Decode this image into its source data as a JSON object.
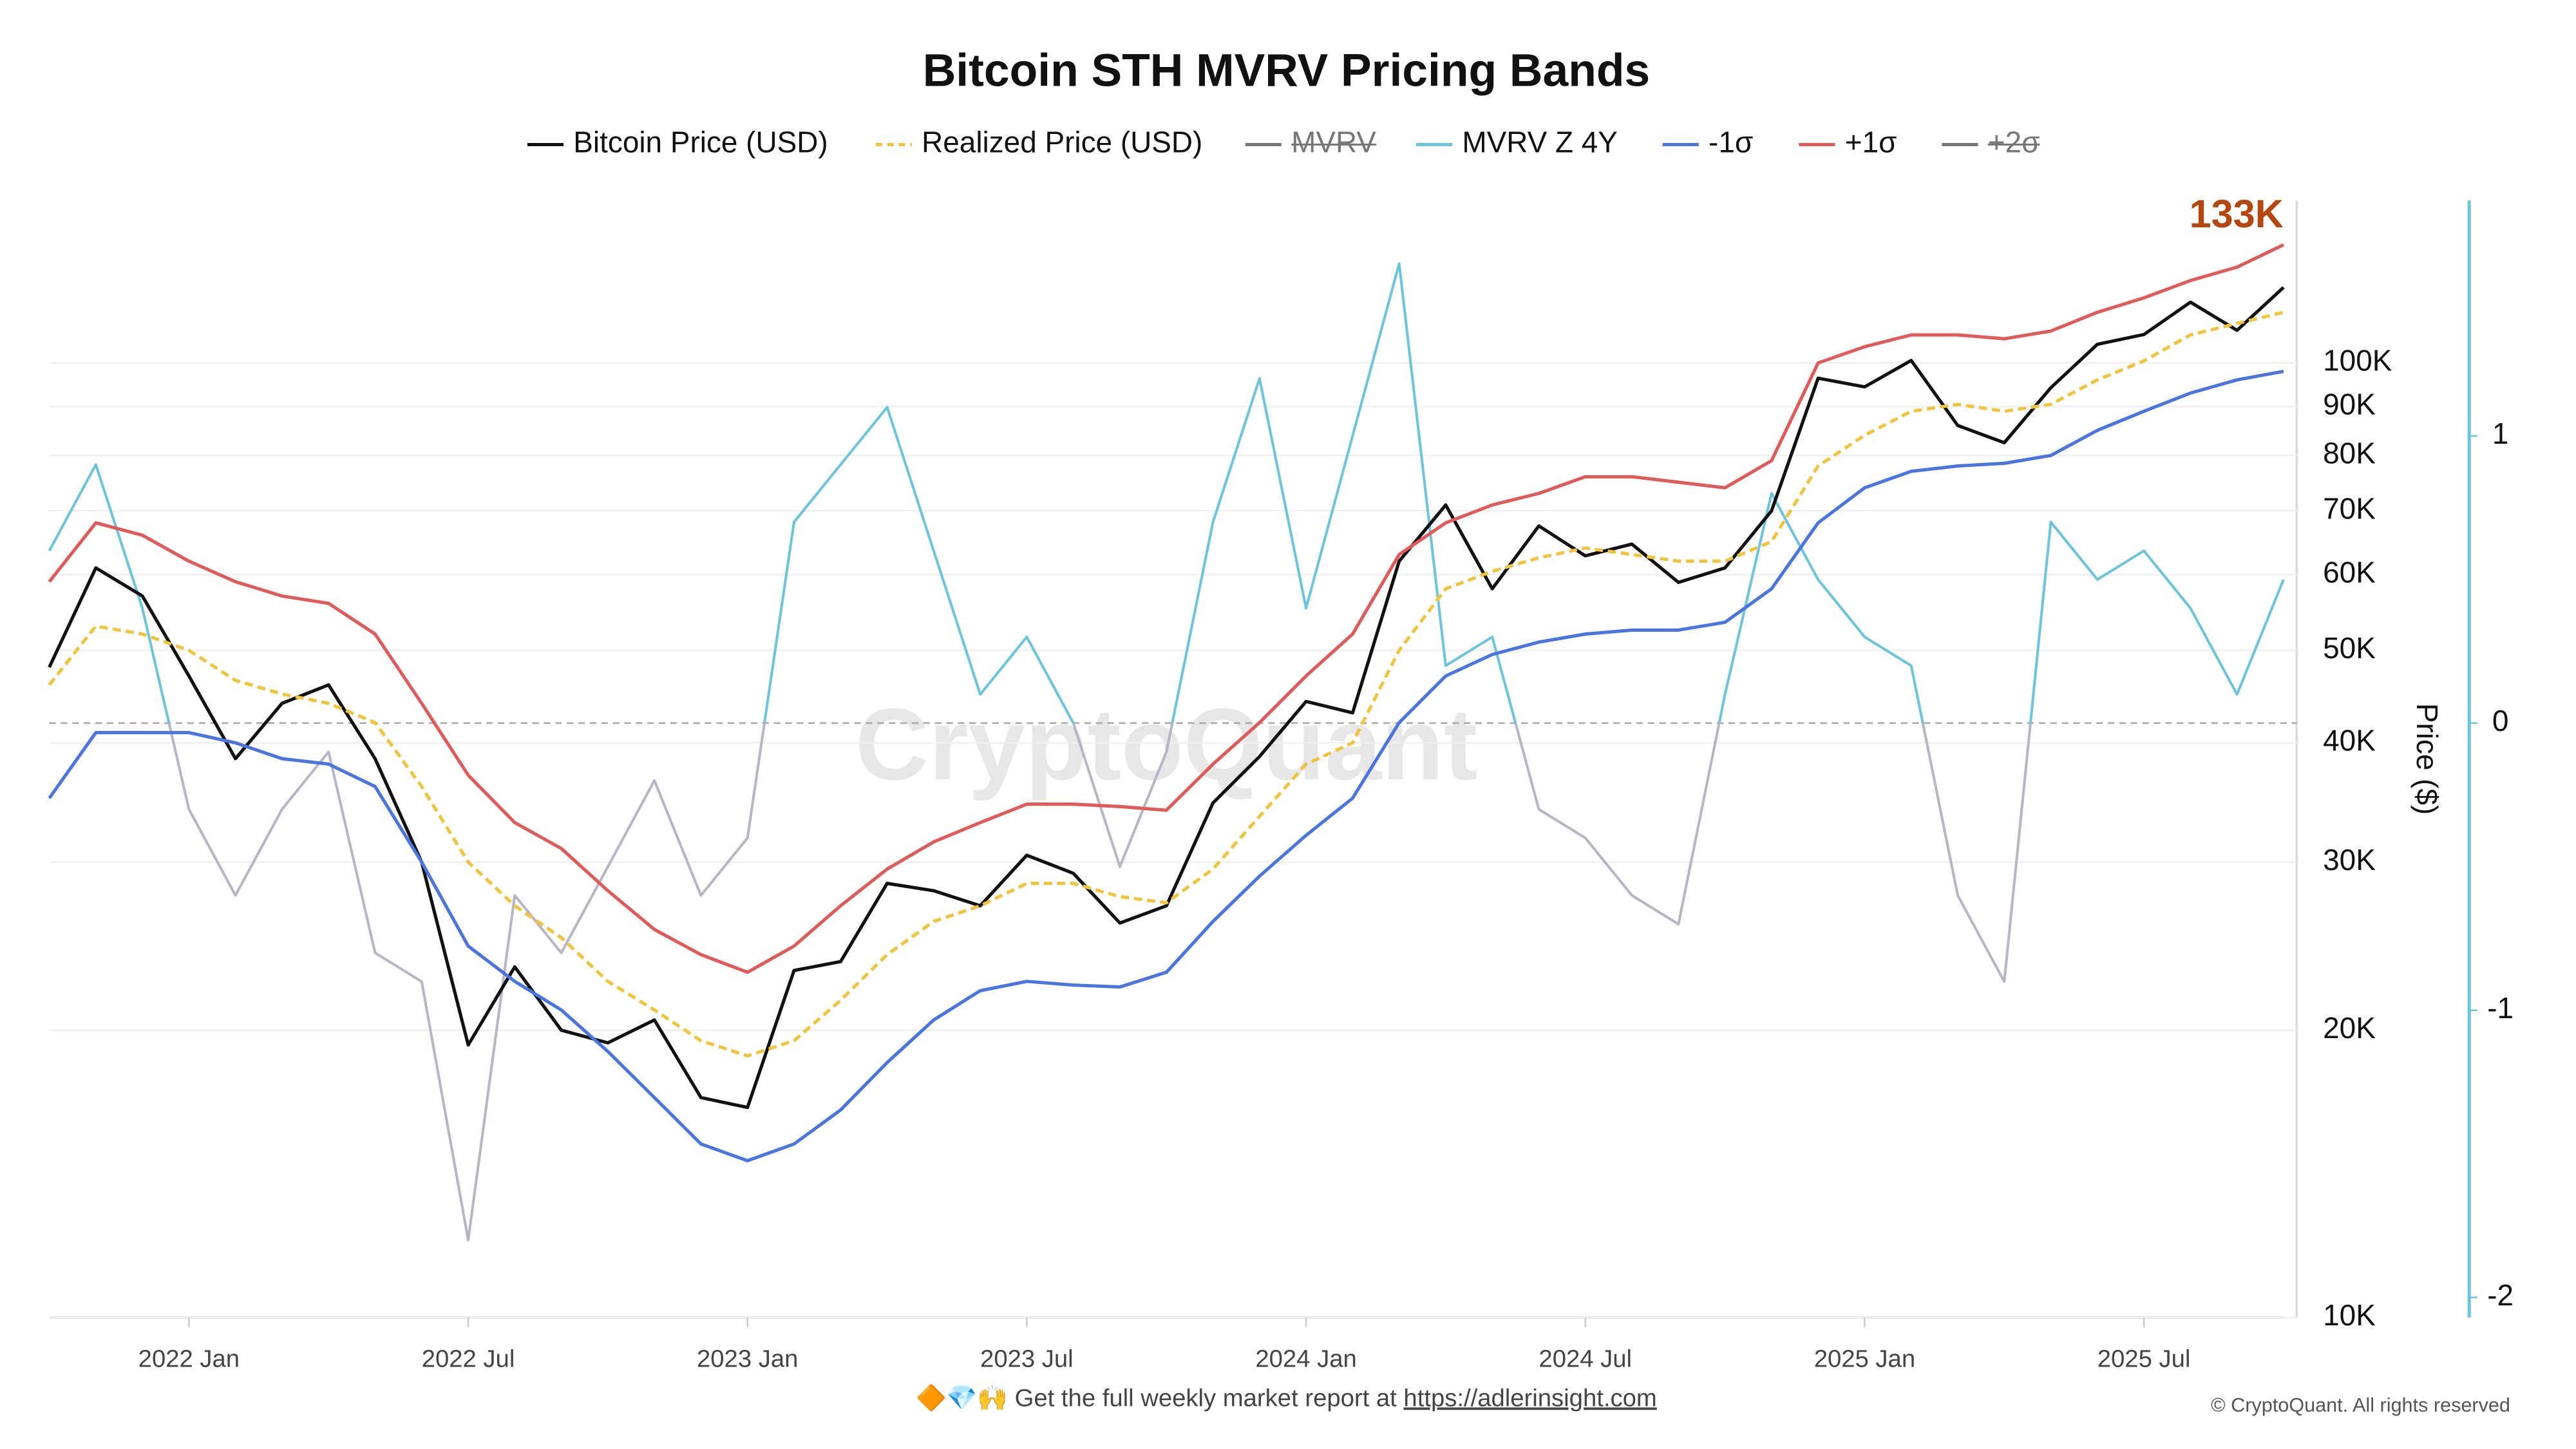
{
  "chart_data": {
    "type": "line",
    "title": "Bitcoin STH MVRV Pricing Bands",
    "y_label": "Price ($)",
    "log_scale": true,
    "grid": true,
    "x": [
      "2021-10",
      "2021-11",
      "2021-12",
      "2022-01",
      "2022-02",
      "2022-03",
      "2022-04",
      "2022-05",
      "2022-06",
      "2022-07",
      "2022-08",
      "2022-09",
      "2022-10",
      "2022-11",
      "2022-12",
      "2023-01",
      "2023-02",
      "2023-03",
      "2023-04",
      "2023-05",
      "2023-06",
      "2023-07",
      "2023-08",
      "2023-09",
      "2023-10",
      "2023-11",
      "2023-12",
      "2024-01",
      "2024-02",
      "2024-03",
      "2024-04",
      "2024-05",
      "2024-06",
      "2024-07",
      "2024-08",
      "2024-09",
      "2024-10",
      "2024-11",
      "2024-12",
      "2025-01",
      "2025-02",
      "2025-03",
      "2025-04",
      "2025-05",
      "2025-06",
      "2025-07",
      "2025-08",
      "2025-09",
      "2025-10"
    ],
    "xlim": [
      "2021-10",
      "2025-10"
    ],
    "xticks": [
      {
        "value": "2022-01",
        "label": "2022 Jan"
      },
      {
        "value": "2022-07",
        "label": "2022 Jul"
      },
      {
        "value": "2023-01",
        "label": "2023 Jan"
      },
      {
        "value": "2023-07",
        "label": "2023 Jul"
      },
      {
        "value": "2024-01",
        "label": "2024 Jan"
      },
      {
        "value": "2024-07",
        "label": "2024 Jul"
      },
      {
        "value": "2025-01",
        "label": "2025 Jan"
      },
      {
        "value": "2025-07",
        "label": "2025 Jul"
      }
    ],
    "ylim": [
      10000,
      148000
    ],
    "yticks": [
      {
        "value": 10000,
        "label": "10K"
      },
      {
        "value": 20000,
        "label": "20K"
      },
      {
        "value": 30000,
        "label": "30K"
      },
      {
        "value": 40000,
        "label": "40K"
      },
      {
        "value": 50000,
        "label": "50K"
      },
      {
        "value": 60000,
        "label": "60K"
      },
      {
        "value": 70000,
        "label": "70K"
      },
      {
        "value": 80000,
        "label": "80K"
      },
      {
        "value": 90000,
        "label": "90K"
      },
      {
        "value": 100000,
        "label": "100K"
      }
    ],
    "y2lim": [
      -2.07,
      1.82
    ],
    "y2ticks": [
      -2,
      -1,
      0,
      1
    ],
    "series": [
      {
        "name": "Bitcoin Price (USD)",
        "color": "#111111",
        "values": [
          48000,
          61000,
          57000,
          47000,
          38500,
          44000,
          46000,
          38500,
          30000,
          19300,
          23300,
          20000,
          19400,
          20500,
          17000,
          16600,
          23100,
          23600,
          28500,
          28000,
          27000,
          30500,
          29200,
          25900,
          27000,
          34600,
          38700,
          44200,
          43000,
          62000,
          71000,
          58000,
          67500,
          62800,
          64600,
          58900,
          61000,
          70000,
          96400,
          94400,
          100600,
          86000,
          82500,
          94200,
          104600,
          107100,
          115800,
          108200,
          120000
        ]
      },
      {
        "name": "Realized Price (USD)",
        "color": "#f0c43c",
        "dashed": true,
        "values": [
          46000,
          53000,
          52000,
          50000,
          46500,
          45000,
          44000,
          42000,
          36000,
          30000,
          27000,
          25000,
          22500,
          21000,
          19500,
          18800,
          19500,
          21500,
          24000,
          26000,
          27000,
          28500,
          28500,
          27600,
          27200,
          29500,
          33500,
          38000,
          40000,
          50000,
          58000,
          60500,
          62500,
          64000,
          63000,
          62000,
          62000,
          65000,
          78000,
          84000,
          89000,
          90500,
          89000,
          90500,
          96000,
          100500,
          107000,
          110000,
          113000
        ]
      },
      {
        "name": "MVRV",
        "color": "#777777",
        "hidden": true
      },
      {
        "name": "MVRV Z 4Y",
        "color": "#6cc5dc",
        "negative_color": "#b8b6c6",
        "axis": "y2",
        "values": [
          0.6,
          0.9,
          0.4,
          -0.3,
          -0.6,
          -0.3,
          -0.1,
          -0.8,
          -0.9,
          -1.8,
          -0.6,
          -0.8,
          -0.5,
          -0.2,
          -0.6,
          -0.4,
          0.7,
          0.9,
          1.1,
          0.6,
          0.1,
          0.3,
          0.0,
          -0.5,
          -0.1,
          0.7,
          1.2,
          0.4,
          1.0,
          1.6,
          0.2,
          0.3,
          -0.3,
          -0.4,
          -0.6,
          -0.7,
          0.1,
          0.8,
          0.5,
          0.3,
          0.2,
          -0.6,
          -0.9,
          0.7,
          0.5,
          0.6,
          0.4,
          0.1,
          0.5
        ]
      },
      {
        "name": "-1σ",
        "color": "#4a74e0",
        "values": [
          35000,
          41000,
          41000,
          41000,
          40000,
          38500,
          38000,
          36000,
          30000,
          24500,
          22500,
          21000,
          19000,
          17000,
          15200,
          14600,
          15200,
          16500,
          18500,
          20500,
          22000,
          22500,
          22300,
          22200,
          23000,
          26000,
          29000,
          32000,
          35000,
          42000,
          47000,
          49500,
          51000,
          52000,
          52500,
          52500,
          53500,
          58000,
          68000,
          74000,
          77000,
          78000,
          78500,
          80000,
          85000,
          89000,
          93000,
          96000,
          98000
        ]
      },
      {
        "name": "+1σ",
        "color": "#e05a5a",
        "values": [
          59000,
          68000,
          66000,
          62000,
          59000,
          57000,
          56000,
          52000,
          44000,
          37000,
          33000,
          31000,
          28000,
          25500,
          24000,
          23000,
          24500,
          27000,
          29500,
          31500,
          33000,
          34500,
          34500,
          34300,
          34000,
          38000,
          42000,
          47000,
          52000,
          63000,
          68000,
          71000,
          73000,
          76000,
          76000,
          75000,
          74000,
          79000,
          100000,
          104000,
          107000,
          107000,
          106000,
          108000,
          113000,
          117000,
          122000,
          126000,
          133000
        ]
      },
      {
        "name": "+2σ",
        "color": "#777777",
        "hidden": true
      }
    ],
    "annotations": [
      {
        "text": "133K",
        "value": 133000,
        "color": "#b5460f"
      }
    ],
    "watermark": "CryptoQuant",
    "footer": {
      "icons": "🔶💎🙌",
      "text": "Get the full weekly market report at",
      "link": "https://adlerinsight.com"
    },
    "copyright": "© CryptoQuant. All rights reserved"
  }
}
